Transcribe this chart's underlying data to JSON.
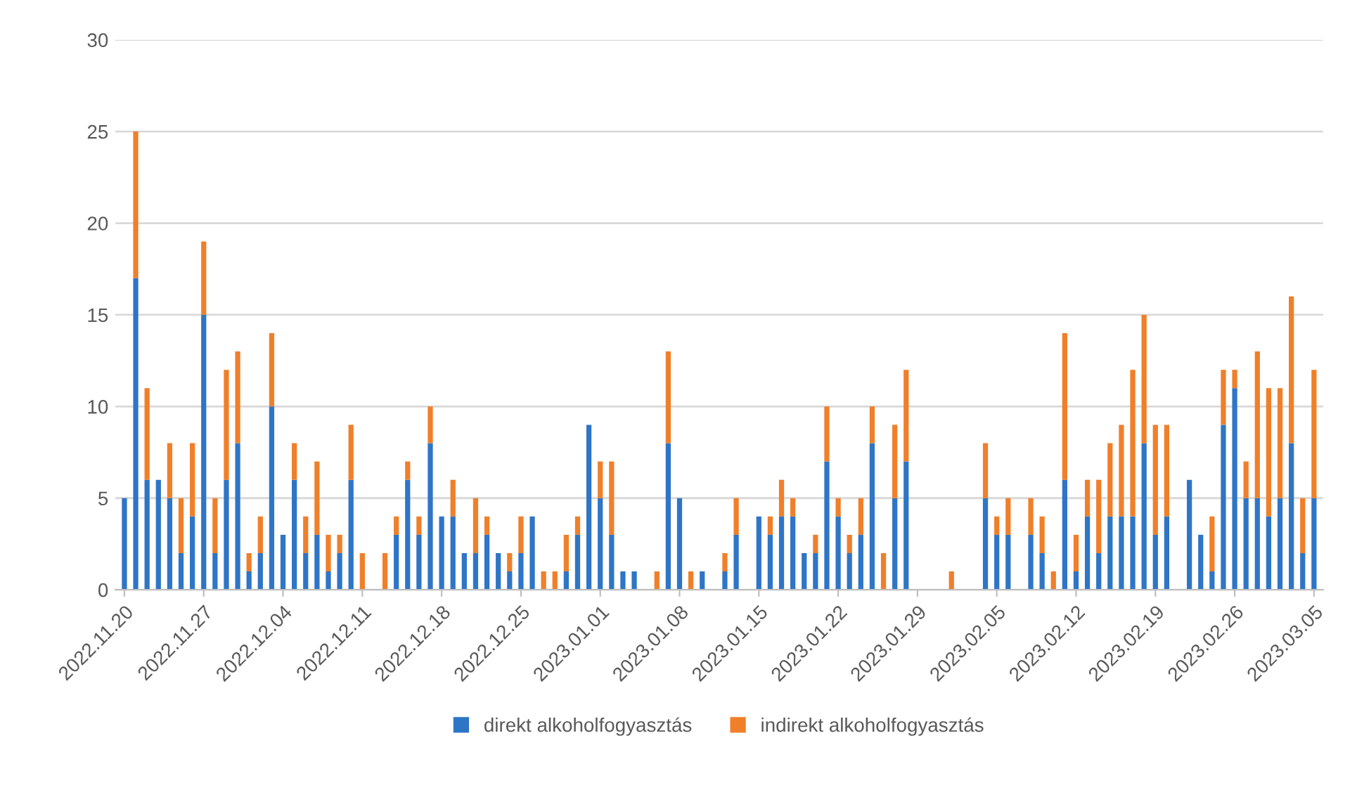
{
  "chart_data": {
    "type": "bar",
    "stacked": true,
    "categories": [
      "2022.11.20",
      null,
      null,
      null,
      null,
      null,
      null,
      "2022.11.27",
      null,
      null,
      null,
      null,
      null,
      null,
      "2022.12.04",
      null,
      null,
      null,
      null,
      null,
      null,
      "2022.12.11",
      null,
      null,
      null,
      null,
      null,
      null,
      "2022.12.18",
      null,
      null,
      null,
      null,
      null,
      null,
      "2022.12.25",
      null,
      null,
      null,
      null,
      null,
      null,
      "2023.01.01",
      null,
      null,
      null,
      null,
      null,
      null,
      "2023.01.08",
      null,
      null,
      null,
      null,
      null,
      null,
      "2023.01.15",
      null,
      null,
      null,
      null,
      null,
      null,
      "2023.01.22",
      null,
      null,
      null,
      null,
      null,
      null,
      "2023.01.29",
      null,
      null,
      null,
      null,
      null,
      null,
      "2023.02.05",
      null,
      null,
      null,
      null,
      null,
      null,
      "2023.02.12",
      null,
      null,
      null,
      null,
      null,
      null,
      "2023.02.19",
      null,
      null,
      null,
      null,
      null,
      null,
      "2023.02.26",
      null,
      null,
      null,
      null,
      null,
      null,
      "2023.03.05"
    ],
    "series": [
      {
        "name": "direkt alkoholfogyasztás",
        "color": "#2e75c6",
        "values": [
          5,
          17,
          6,
          6,
          5,
          2,
          4,
          15,
          2,
          6,
          8,
          1,
          2,
          10,
          3,
          6,
          2,
          3,
          1,
          2,
          6,
          0,
          0,
          0,
          3,
          6,
          3,
          8,
          4,
          4,
          2,
          2,
          3,
          2,
          1,
          2,
          4,
          0,
          0,
          1,
          3,
          9,
          5,
          3,
          1,
          1,
          0,
          0,
          8,
          5,
          0,
          1,
          0,
          1,
          3,
          0,
          4,
          3,
          4,
          4,
          2,
          2,
          7,
          4,
          2,
          3,
          8,
          0,
          5,
          7,
          0,
          0,
          0,
          0,
          0,
          0,
          5,
          3,
          3,
          0,
          3,
          2,
          0,
          6,
          1,
          4,
          2,
          4,
          4,
          4,
          8,
          3,
          4,
          0,
          6,
          3,
          1,
          9,
          11,
          5,
          5,
          4,
          5,
          8,
          2,
          5
        ]
      },
      {
        "name": "indirekt alkoholfogyasztás",
        "color": "#f07f2a",
        "values": [
          0,
          8,
          5,
          0,
          3,
          3,
          4,
          4,
          3,
          6,
          5,
          1,
          2,
          4,
          0,
          2,
          2,
          4,
          2,
          1,
          3,
          2,
          0,
          2,
          1,
          1,
          1,
          2,
          0,
          2,
          0,
          3,
          1,
          0,
          1,
          2,
          0,
          1,
          1,
          2,
          1,
          0,
          2,
          4,
          0,
          0,
          0,
          1,
          5,
          0,
          1,
          0,
          0,
          1,
          2,
          0,
          0,
          1,
          2,
          1,
          0,
          1,
          3,
          1,
          1,
          2,
          2,
          2,
          4,
          5,
          0,
          0,
          0,
          1,
          0,
          0,
          3,
          1,
          2,
          0,
          2,
          2,
          1,
          8,
          2,
          2,
          4,
          4,
          5,
          8,
          7,
          6,
          5,
          0,
          0,
          0,
          3,
          3,
          1,
          2,
          8,
          7,
          6,
          8,
          3,
          7
        ]
      }
    ],
    "ylim": [
      0,
      30
    ],
    "yticks": [
      0,
      5,
      10,
      15,
      20,
      25,
      30
    ],
    "grid": "y",
    "legend": "bottom"
  }
}
